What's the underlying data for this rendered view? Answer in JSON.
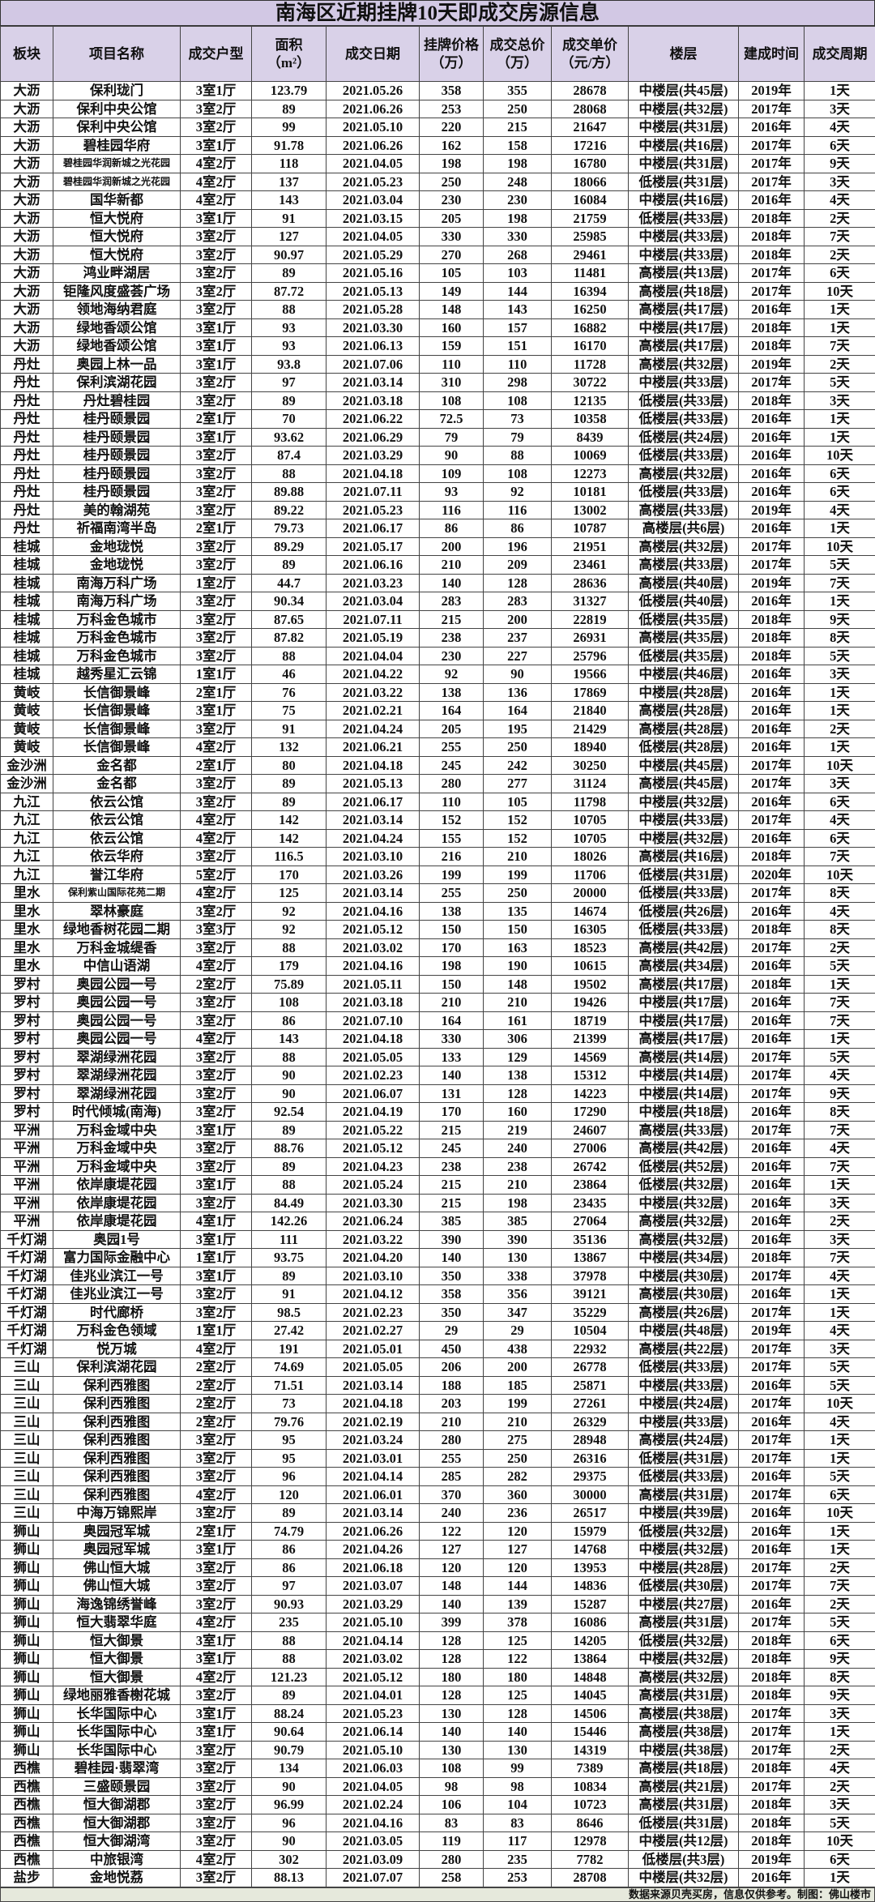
{
  "title": "南海区近期挂牌10天即成交房源信息",
  "headers": [
    "板块",
    "项目名称",
    "成交户型",
    "面积\n（m²）",
    "成交日期",
    "挂牌价格\n（万）",
    "成交总价\n（万）",
    "成交单价\n（元/方）",
    "楼层",
    "建成时间",
    "成交周期"
  ],
  "rows": [
    [
      "大沥",
      "保利珑门",
      "3室1厅",
      "123.79",
      "2021.05.26",
      "358",
      "355",
      "28678",
      "中楼层(共45层)",
      "2019年",
      "1天"
    ],
    [
      "大沥",
      "保利中央公馆",
      "3室2厅",
      "89",
      "2021.06.26",
      "253",
      "250",
      "28068",
      "中楼层(共32层)",
      "2017年",
      "3天"
    ],
    [
      "大沥",
      "保利中央公馆",
      "3室2厅",
      "99",
      "2021.05.10",
      "220",
      "215",
      "21647",
      "中楼层(共31层)",
      "2016年",
      "4天"
    ],
    [
      "大沥",
      "碧桂园华府",
      "3室1厅",
      "91.78",
      "2021.06.26",
      "162",
      "158",
      "17216",
      "中楼层(共16层)",
      "2017年",
      "6天"
    ],
    [
      "大沥",
      "碧桂园华润新城之光花园",
      "4室2厅",
      "118",
      "2021.04.05",
      "198",
      "198",
      "16780",
      "中楼层(共31层)",
      "2017年",
      "9天"
    ],
    [
      "大沥",
      "碧桂园华润新城之光花园",
      "4室2厅",
      "137",
      "2021.05.23",
      "250",
      "248",
      "18066",
      "低楼层(共31层)",
      "2017年",
      "3天"
    ],
    [
      "大沥",
      "国华新都",
      "4室2厅",
      "143",
      "2021.03.04",
      "230",
      "230",
      "16084",
      "中楼层(共16层)",
      "2016年",
      "4天"
    ],
    [
      "大沥",
      "恒大悦府",
      "3室1厅",
      "91",
      "2021.03.15",
      "205",
      "198",
      "21759",
      "低楼层(共33层)",
      "2018年",
      "2天"
    ],
    [
      "大沥",
      "恒大悦府",
      "3室2厅",
      "127",
      "2021.04.05",
      "330",
      "330",
      "25985",
      "中楼层(共33层)",
      "2018年",
      "7天"
    ],
    [
      "大沥",
      "恒大悦府",
      "3室2厅",
      "90.97",
      "2021.05.29",
      "270",
      "268",
      "29461",
      "中楼层(共33层)",
      "2018年",
      "2天"
    ],
    [
      "大沥",
      "鸿业畔湖居",
      "3室2厅",
      "89",
      "2021.05.16",
      "105",
      "103",
      "11481",
      "高楼层(共13层)",
      "2017年",
      "6天"
    ],
    [
      "大沥",
      "钜隆风度盛荟广场",
      "3室2厅",
      "87.72",
      "2021.05.13",
      "149",
      "144",
      "16394",
      "高楼层(共18层)",
      "2017年",
      "10天"
    ],
    [
      "大沥",
      "领地海纳君庭",
      "3室2厅",
      "88",
      "2021.05.28",
      "148",
      "143",
      "16250",
      "高楼层(共17层)",
      "2016年",
      "1天"
    ],
    [
      "大沥",
      "绿地香颂公馆",
      "3室1厅",
      "93",
      "2021.03.30",
      "160",
      "157",
      "16882",
      "中楼层(共17层)",
      "2018年",
      "1天"
    ],
    [
      "大沥",
      "绿地香颂公馆",
      "3室1厅",
      "93",
      "2021.06.13",
      "159",
      "151",
      "16170",
      "高楼层(共17层)",
      "2018年",
      "7天"
    ],
    [
      "丹灶",
      "奥园上林一品",
      "3室1厅",
      "93.8",
      "2021.07.06",
      "110",
      "110",
      "11728",
      "高楼层(共32层)",
      "2019年",
      "2天"
    ],
    [
      "丹灶",
      "保利滨湖花园",
      "3室2厅",
      "97",
      "2021.03.14",
      "310",
      "298",
      "30722",
      "中楼层(共33层)",
      "2017年",
      "5天"
    ],
    [
      "丹灶",
      "丹灶碧桂园",
      "3室2厅",
      "89",
      "2021.03.18",
      "108",
      "108",
      "12135",
      "低楼层(共33层)",
      "2018年",
      "3天"
    ],
    [
      "丹灶",
      "桂丹颐景园",
      "2室1厅",
      "70",
      "2021.06.22",
      "72.5",
      "73",
      "10358",
      "低楼层(共33层)",
      "2016年",
      "1天"
    ],
    [
      "丹灶",
      "桂丹颐景园",
      "3室1厅",
      "93.62",
      "2021.06.29",
      "79",
      "79",
      "8439",
      "低楼层(共24层)",
      "2016年",
      "1天"
    ],
    [
      "丹灶",
      "桂丹颐景园",
      "3室2厅",
      "87.4",
      "2021.03.29",
      "90",
      "88",
      "10069",
      "低楼层(共33层)",
      "2016年",
      "10天"
    ],
    [
      "丹灶",
      "桂丹颐景园",
      "3室2厅",
      "88",
      "2021.04.18",
      "109",
      "108",
      "12273",
      "高楼层(共32层)",
      "2016年",
      "6天"
    ],
    [
      "丹灶",
      "桂丹颐景园",
      "3室2厅",
      "89.88",
      "2021.07.11",
      "93",
      "92",
      "10181",
      "低楼层(共33层)",
      "2016年",
      "6天"
    ],
    [
      "丹灶",
      "美的翰湖苑",
      "3室2厅",
      "89.22",
      "2021.05.23",
      "116",
      "116",
      "13002",
      "高楼层(共33层)",
      "2019年",
      "4天"
    ],
    [
      "丹灶",
      "祈福南湾半岛",
      "2室1厅",
      "79.73",
      "2021.06.17",
      "86",
      "86",
      "10787",
      "高楼层(共6层)",
      "2016年",
      "1天"
    ],
    [
      "桂城",
      "金地珑悦",
      "3室2厅",
      "89.29",
      "2021.05.17",
      "200",
      "196",
      "21951",
      "高楼层(共32层)",
      "2017年",
      "10天"
    ],
    [
      "桂城",
      "金地珑悦",
      "3室2厅",
      "89",
      "2021.06.16",
      "210",
      "209",
      "23461",
      "高楼层(共33层)",
      "2017年",
      "5天"
    ],
    [
      "桂城",
      "南海万科广场",
      "1室2厅",
      "44.7",
      "2021.03.23",
      "140",
      "128",
      "28636",
      "高楼层(共40层)",
      "2019年",
      "7天"
    ],
    [
      "桂城",
      "南海万科广场",
      "3室2厅",
      "90.34",
      "2021.03.04",
      "283",
      "283",
      "31327",
      "低楼层(共40层)",
      "2016年",
      "1天"
    ],
    [
      "桂城",
      "万科金色城市",
      "3室2厅",
      "87.65",
      "2021.07.11",
      "215",
      "200",
      "22819",
      "低楼层(共35层)",
      "2018年",
      "9天"
    ],
    [
      "桂城",
      "万科金色城市",
      "3室2厅",
      "87.82",
      "2021.05.19",
      "238",
      "237",
      "26931",
      "高楼层(共35层)",
      "2018年",
      "8天"
    ],
    [
      "桂城",
      "万科金色城市",
      "3室2厅",
      "88",
      "2021.04.04",
      "230",
      "227",
      "25796",
      "低楼层(共35层)",
      "2018年",
      "5天"
    ],
    [
      "桂城",
      "越秀星汇云锦",
      "1室1厅",
      "46",
      "2021.04.22",
      "92",
      "90",
      "19566",
      "中楼层(共46层)",
      "2016年",
      "3天"
    ],
    [
      "黄岐",
      "长信御景峰",
      "2室1厅",
      "76",
      "2021.03.22",
      "138",
      "136",
      "17869",
      "中楼层(共28层)",
      "2016年",
      "1天"
    ],
    [
      "黄岐",
      "长信御景峰",
      "3室1厅",
      "75",
      "2021.02.21",
      "164",
      "164",
      "21840",
      "高楼层(共28层)",
      "2016年",
      "1天"
    ],
    [
      "黄岐",
      "长信御景峰",
      "3室2厅",
      "91",
      "2021.04.24",
      "205",
      "195",
      "21429",
      "高楼层(共28层)",
      "2016年",
      "2天"
    ],
    [
      "黄岐",
      "长信御景峰",
      "4室2厅",
      "132",
      "2021.06.21",
      "255",
      "250",
      "18940",
      "低楼层(共28层)",
      "2016年",
      "1天"
    ],
    [
      "金沙洲",
      "金名都",
      "2室1厅",
      "80",
      "2021.04.18",
      "245",
      "242",
      "30250",
      "中楼层(共45层)",
      "2017年",
      "10天"
    ],
    [
      "金沙洲",
      "金名都",
      "3室2厅",
      "89",
      "2021.05.13",
      "280",
      "277",
      "31124",
      "高楼层(共45层)",
      "2017年",
      "3天"
    ],
    [
      "九江",
      "依云公馆",
      "3室2厅",
      "89",
      "2021.06.17",
      "110",
      "105",
      "11798",
      "中楼层(共32层)",
      "2016年",
      "6天"
    ],
    [
      "九江",
      "依云公馆",
      "4室2厅",
      "142",
      "2021.03.14",
      "152",
      "152",
      "10705",
      "中楼层(共33层)",
      "2017年",
      "4天"
    ],
    [
      "九江",
      "依云公馆",
      "4室2厅",
      "142",
      "2021.04.24",
      "155",
      "152",
      "10705",
      "中楼层(共32层)",
      "2016年",
      "6天"
    ],
    [
      "九江",
      "依云华府",
      "3室2厅",
      "116.5",
      "2021.03.10",
      "216",
      "210",
      "18026",
      "高楼层(共16层)",
      "2018年",
      "7天"
    ],
    [
      "九江",
      "誉江华府",
      "5室2厅",
      "170",
      "2021.03.26",
      "199",
      "199",
      "11706",
      "低楼层(共31层)",
      "2020年",
      "10天"
    ],
    [
      "里水",
      "保利紫山国际花苑二期",
      "4室2厅",
      "125",
      "2021.03.14",
      "255",
      "250",
      "20000",
      "低楼层(共33层)",
      "2017年",
      "8天"
    ],
    [
      "里水",
      "翠林豪庭",
      "3室2厅",
      "92",
      "2021.04.16",
      "138",
      "135",
      "14674",
      "低楼层(共26层)",
      "2016年",
      "4天"
    ],
    [
      "里水",
      "绿地香树花园二期",
      "3室3厅",
      "92",
      "2021.05.12",
      "150",
      "150",
      "16305",
      "低楼层(共33层)",
      "2018年",
      "8天"
    ],
    [
      "里水",
      "万科金城缇香",
      "3室2厅",
      "88",
      "2021.03.02",
      "170",
      "163",
      "18523",
      "高楼层(共42层)",
      "2017年",
      "2天"
    ],
    [
      "里水",
      "中信山语湖",
      "4室2厅",
      "179",
      "2021.04.16",
      "198",
      "190",
      "10615",
      "高楼层(共34层)",
      "2016年",
      "5天"
    ],
    [
      "罗村",
      "奥园公园一号",
      "2室2厅",
      "75.89",
      "2021.05.11",
      "150",
      "148",
      "19502",
      "高楼层(共17层)",
      "2018年",
      "1天"
    ],
    [
      "罗村",
      "奥园公园一号",
      "3室2厅",
      "108",
      "2021.03.18",
      "210",
      "210",
      "19426",
      "中楼层(共17层)",
      "2016年",
      "7天"
    ],
    [
      "罗村",
      "奥园公园一号",
      "3室2厅",
      "86",
      "2021.07.10",
      "164",
      "161",
      "18719",
      "中楼层(共17层)",
      "2016年",
      "7天"
    ],
    [
      "罗村",
      "奥园公园一号",
      "4室2厅",
      "143",
      "2021.04.18",
      "330",
      "306",
      "21399",
      "高楼层(共17层)",
      "2016年",
      "1天"
    ],
    [
      "罗村",
      "翠湖绿洲花园",
      "3室2厅",
      "88",
      "2021.05.05",
      "133",
      "129",
      "14569",
      "高楼层(共14层)",
      "2017年",
      "5天"
    ],
    [
      "罗村",
      "翠湖绿洲花园",
      "3室2厅",
      "90",
      "2021.02.23",
      "140",
      "138",
      "15312",
      "中楼层(共14层)",
      "2017年",
      "4天"
    ],
    [
      "罗村",
      "翠湖绿洲花园",
      "3室2厅",
      "90",
      "2021.06.07",
      "131",
      "128",
      "14223",
      "中楼层(共14层)",
      "2017年",
      "9天"
    ],
    [
      "罗村",
      "时代倾城(南海)",
      "3室2厅",
      "92.54",
      "2021.04.19",
      "170",
      "160",
      "17290",
      "中楼层(共18层)",
      "2016年",
      "8天"
    ],
    [
      "平洲",
      "万科金域中央",
      "3室1厅",
      "89",
      "2021.05.22",
      "215",
      "219",
      "24607",
      "高楼层(共33层)",
      "2017年",
      "7天"
    ],
    [
      "平洲",
      "万科金域中央",
      "3室2厅",
      "88.76",
      "2021.05.12",
      "245",
      "240",
      "27006",
      "高楼层(共42层)",
      "2016年",
      "4天"
    ],
    [
      "平洲",
      "万科金域中央",
      "3室2厅",
      "89",
      "2021.04.23",
      "238",
      "238",
      "26742",
      "低楼层(共52层)",
      "2016年",
      "7天"
    ],
    [
      "平洲",
      "依岸康堤花园",
      "3室1厅",
      "88",
      "2021.05.24",
      "215",
      "210",
      "23864",
      "低楼层(共32层)",
      "2016年",
      "1天"
    ],
    [
      "平洲",
      "依岸康堤花园",
      "3室2厅",
      "84.49",
      "2021.03.30",
      "215",
      "198",
      "23435",
      "中楼层(共32层)",
      "2016年",
      "3天"
    ],
    [
      "平洲",
      "依岸康堤花园",
      "4室1厅",
      "142.26",
      "2021.06.24",
      "385",
      "385",
      "27064",
      "高楼层(共32层)",
      "2016年",
      "2天"
    ],
    [
      "千灯湖",
      "奥园1号",
      "3室1厅",
      "111",
      "2021.03.22",
      "390",
      "390",
      "35136",
      "高楼层(共32层)",
      "2016年",
      "3天"
    ],
    [
      "千灯湖",
      "富力国际金融中心",
      "1室1厅",
      "93.75",
      "2021.04.20",
      "140",
      "130",
      "13867",
      "中楼层(共34层)",
      "2018年",
      "7天"
    ],
    [
      "千灯湖",
      "佳兆业滨江一号",
      "3室1厅",
      "89",
      "2021.03.10",
      "350",
      "338",
      "37978",
      "中楼层(共30层)",
      "2017年",
      "4天"
    ],
    [
      "千灯湖",
      "佳兆业滨江一号",
      "3室2厅",
      "91",
      "2021.04.12",
      "358",
      "356",
      "39121",
      "高楼层(共30层)",
      "2016年",
      "1天"
    ],
    [
      "千灯湖",
      "时代廊桥",
      "3室2厅",
      "98.5",
      "2021.02.23",
      "350",
      "347",
      "35229",
      "高楼层(共26层)",
      "2017年",
      "1天"
    ],
    [
      "千灯湖",
      "万科金色领域",
      "1室1厅",
      "27.42",
      "2021.02.27",
      "29",
      "29",
      "10504",
      "中楼层(共48层)",
      "2019年",
      "4天"
    ],
    [
      "千灯湖",
      "悦万城",
      "4室2厅",
      "191",
      "2021.05.01",
      "450",
      "438",
      "22932",
      "高楼层(共22层)",
      "2017年",
      "3天"
    ],
    [
      "三山",
      "保利滨湖花园",
      "2室2厅",
      "74.69",
      "2021.05.05",
      "206",
      "200",
      "26778",
      "低楼层(共33层)",
      "2017年",
      "5天"
    ],
    [
      "三山",
      "保利西雅图",
      "2室2厅",
      "71.51",
      "2021.03.14",
      "188",
      "185",
      "25871",
      "中楼层(共33层)",
      "2016年",
      "5天"
    ],
    [
      "三山",
      "保利西雅图",
      "2室2厅",
      "73",
      "2021.04.18",
      "203",
      "199",
      "27261",
      "中楼层(共24层)",
      "2017年",
      "10天"
    ],
    [
      "三山",
      "保利西雅图",
      "2室2厅",
      "79.76",
      "2021.02.19",
      "210",
      "210",
      "26329",
      "中楼层(共33层)",
      "2016年",
      "4天"
    ],
    [
      "三山",
      "保利西雅图",
      "3室2厅",
      "95",
      "2021.03.24",
      "280",
      "275",
      "28948",
      "高楼层(共24层)",
      "2017年",
      "1天"
    ],
    [
      "三山",
      "保利西雅图",
      "3室2厅",
      "95",
      "2021.03.01",
      "255",
      "250",
      "26316",
      "低楼层(共31层)",
      "2017年",
      "1天"
    ],
    [
      "三山",
      "保利西雅图",
      "3室2厅",
      "96",
      "2021.04.14",
      "285",
      "282",
      "29375",
      "低楼层(共33层)",
      "2016年",
      "5天"
    ],
    [
      "三山",
      "保利西雅图",
      "4室2厅",
      "120",
      "2021.06.01",
      "370",
      "360",
      "30000",
      "高楼层(共31层)",
      "2017年",
      "6天"
    ],
    [
      "三山",
      "中海万锦熙岸",
      "3室2厅",
      "89",
      "2021.03.14",
      "240",
      "236",
      "26517",
      "中楼层(共39层)",
      "2016年",
      "10天"
    ],
    [
      "狮山",
      "奥园冠军城",
      "2室1厅",
      "74.79",
      "2021.06.26",
      "122",
      "120",
      "15979",
      "低楼层(共32层)",
      "2016年",
      "1天"
    ],
    [
      "狮山",
      "奥园冠军城",
      "3室1厅",
      "86",
      "2021.04.26",
      "127",
      "127",
      "14768",
      "中楼层(共32层)",
      "2016年",
      "1天"
    ],
    [
      "狮山",
      "佛山恒大城",
      "3室2厅",
      "86",
      "2021.06.18",
      "120",
      "120",
      "13953",
      "中楼层(共28层)",
      "2017年",
      "2天"
    ],
    [
      "狮山",
      "佛山恒大城",
      "3室2厅",
      "97",
      "2021.03.07",
      "148",
      "144",
      "14836",
      "低楼层(共30层)",
      "2017年",
      "7天"
    ],
    [
      "狮山",
      "海逸锦绣誉峰",
      "3室2厅",
      "90.93",
      "2021.03.29",
      "140",
      "139",
      "15287",
      "中楼层(共27层)",
      "2016年",
      "2天"
    ],
    [
      "狮山",
      "恒大翡翠华庭",
      "4室2厅",
      "235",
      "2021.05.10",
      "399",
      "378",
      "16086",
      "高楼层(共31层)",
      "2017年",
      "5天"
    ],
    [
      "狮山",
      "恒大御景",
      "3室1厅",
      "88",
      "2021.04.14",
      "128",
      "125",
      "14205",
      "低楼层(共32层)",
      "2018年",
      "6天"
    ],
    [
      "狮山",
      "恒大御景",
      "3室1厅",
      "88",
      "2021.03.02",
      "128",
      "122",
      "13864",
      "中楼层(共32层)",
      "2018年",
      "9天"
    ],
    [
      "狮山",
      "恒大御景",
      "4室2厅",
      "121.23",
      "2021.05.12",
      "180",
      "180",
      "14848",
      "高楼层(共32层)",
      "2018年",
      "8天"
    ],
    [
      "狮山",
      "绿地丽雅香榭花城",
      "3室2厅",
      "89",
      "2021.04.01",
      "128",
      "125",
      "14045",
      "高楼层(共31层)",
      "2018年",
      "9天"
    ],
    [
      "狮山",
      "长华国际中心",
      "3室1厅",
      "88.24",
      "2021.05.23",
      "130",
      "128",
      "14506",
      "高楼层(共38层)",
      "2017年",
      "3天"
    ],
    [
      "狮山",
      "长华国际中心",
      "3室1厅",
      "90.64",
      "2021.06.14",
      "140",
      "140",
      "15446",
      "高楼层(共38层)",
      "2017年",
      "1天"
    ],
    [
      "狮山",
      "长华国际中心",
      "3室2厅",
      "90.79",
      "2021.05.10",
      "130",
      "130",
      "14319",
      "中楼层(共38层)",
      "2017年",
      "2天"
    ],
    [
      "西樵",
      "碧桂园·翡翠湾",
      "3室2厅",
      "134",
      "2021.06.03",
      "108",
      "99",
      "7389",
      "高楼层(共18层)",
      "2018年",
      "4天"
    ],
    [
      "西樵",
      "三盛颐景园",
      "3室2厅",
      "90",
      "2021.04.05",
      "98",
      "98",
      "10834",
      "高楼层(共21层)",
      "2017年",
      "2天"
    ],
    [
      "西樵",
      "恒大御湖郡",
      "3室2厅",
      "96.99",
      "2021.02.24",
      "106",
      "104",
      "10723",
      "高楼层(共31层)",
      "2018年",
      "3天"
    ],
    [
      "西樵",
      "恒大御湖郡",
      "3室2厅",
      "96",
      "2021.04.16",
      "83",
      "83",
      "8646",
      "低楼层(共31层)",
      "2018年",
      "5天"
    ],
    [
      "西樵",
      "恒大御湖湾",
      "3室2厅",
      "90",
      "2021.03.05",
      "119",
      "117",
      "12978",
      "中楼层(共12层)",
      "2018年",
      "10天"
    ],
    [
      "西樵",
      "中旅银湾",
      "4室2厅",
      "302",
      "2021.03.09",
      "280",
      "235",
      "7782",
      "低楼层(共3层)",
      "2019年",
      "6天"
    ],
    [
      "盐步",
      "金地悦荔",
      "3室2厅",
      "88.13",
      "2021.07.07",
      "258",
      "253",
      "28708",
      "中楼层(共32层)",
      "2016年",
      "1天"
    ]
  ],
  "footer": "数据来源贝壳买房，信息仅供参考。制图：佛山楼市",
  "colors": {
    "title_bg": "#d2c8e4",
    "header_bg": "#d9d1e8",
    "footer_bg": "#e6e9dc"
  }
}
